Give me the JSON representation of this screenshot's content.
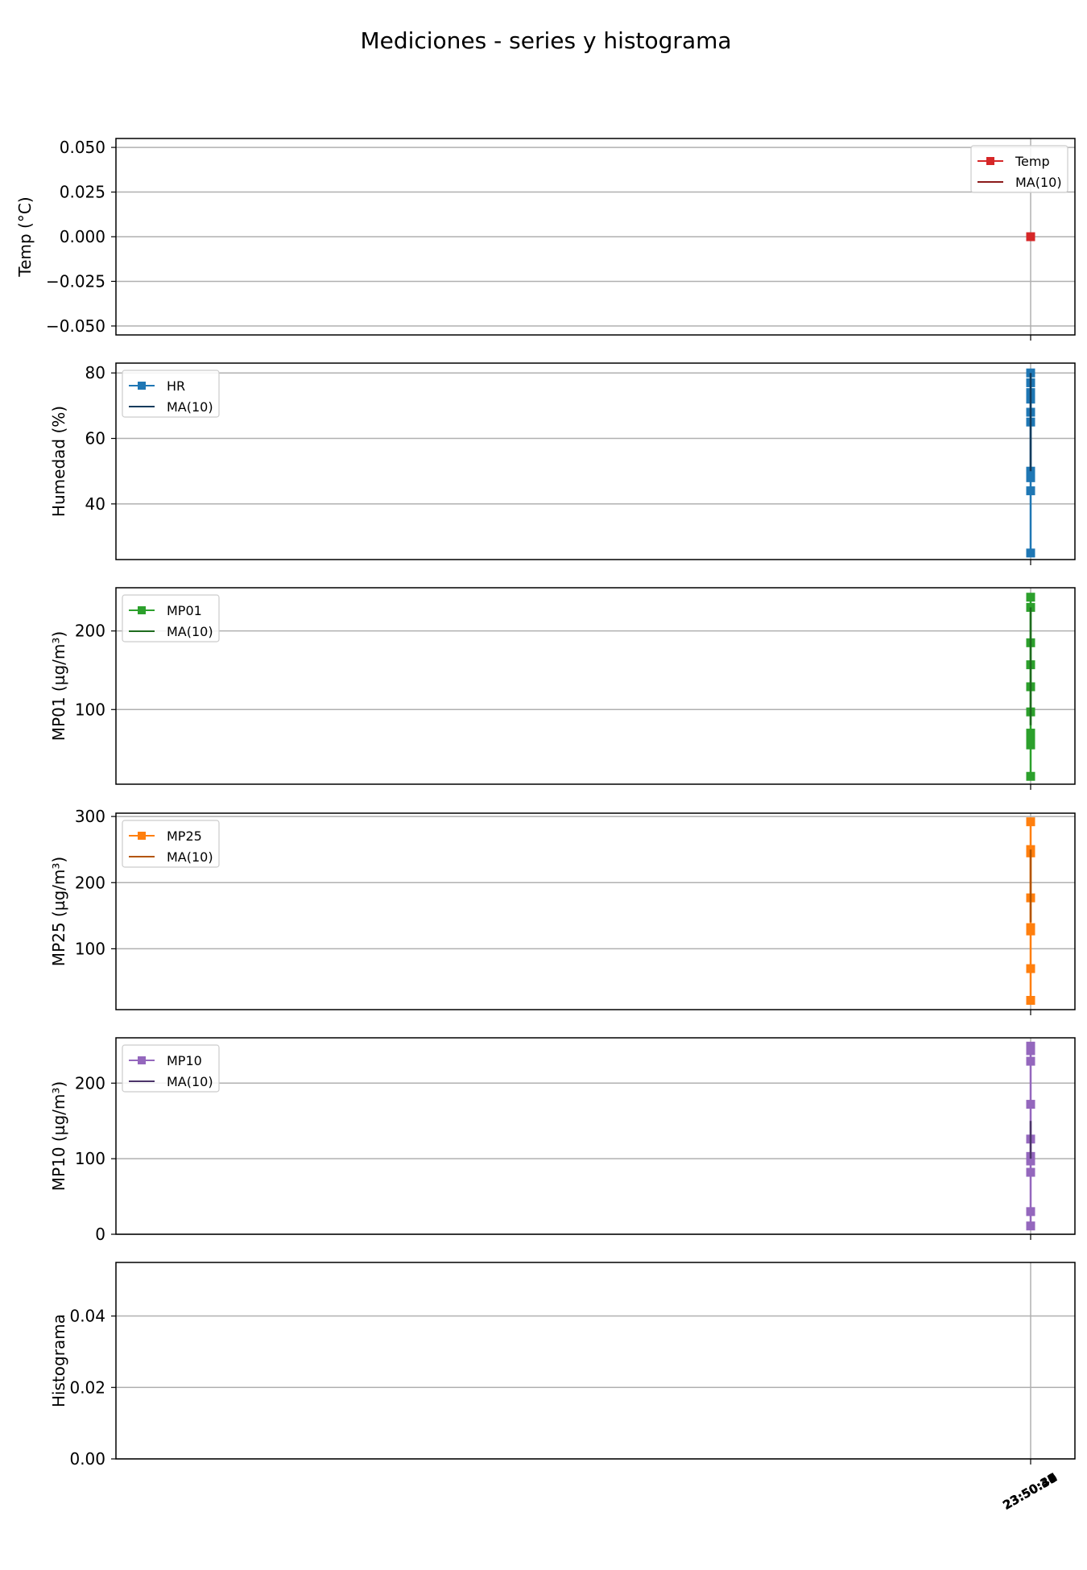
{
  "chart_data": {
    "title": "Mediciones - series y histograma",
    "x_tick_labels": [
      "23:50:32",
      "23:50:33",
      "23:50:34",
      "23:50:35",
      "23:50:36",
      "23:50:37",
      "23:50:38",
      "23:50:39",
      "23:50:40",
      "23:50:41"
    ],
    "panels": [
      {
        "type": "line",
        "ylabel": "Temp (°C)",
        "ylim": [
          -0.055,
          0.055
        ],
        "yticks": [
          0.05,
          0.025,
          0.0,
          -0.025,
          -0.05
        ],
        "ytick_labels": [
          "0.050",
          "0.025",
          "0.000",
          "−0.025",
          "−0.050"
        ],
        "grid": true,
        "legend_loc": "upper right",
        "series": [
          {
            "name": "Temp",
            "color": "#d62728",
            "values": [
              0
            ]
          },
          {
            "name": "MA(10)",
            "color": "#8b1a1a",
            "values": [
              0
            ]
          }
        ]
      },
      {
        "type": "line",
        "ylabel": "Humedad (%)",
        "ylim": [
          23,
          83
        ],
        "yticks": [
          80,
          60,
          40
        ],
        "ytick_labels": [
          "80",
          "60",
          "40"
        ],
        "grid": true,
        "legend_loc": "upper left",
        "series": [
          {
            "name": "HR",
            "color": "#1f77b4",
            "values": [
              80,
              77,
              74,
              72,
              68,
              65,
              50,
              48,
              44,
              25
            ]
          },
          {
            "name": "MA(10)",
            "color": "#123b5c",
            "values": [
              80,
              78,
              75,
              70,
              65,
              58,
              52,
              50
            ]
          }
        ]
      },
      {
        "type": "line",
        "ylabel": "MP01 (µg/m³)",
        "ylim": [
          5,
          255
        ],
        "yticks": [
          200,
          100
        ],
        "ytick_labels": [
          "200",
          "100"
        ],
        "grid": true,
        "legend_loc": "upper left",
        "series": [
          {
            "name": "MP01",
            "color": "#2ca02c",
            "values": [
              243,
              230,
              185,
              157,
              129,
              97,
              70,
              63,
              55,
              15
            ]
          },
          {
            "name": "MA(10)",
            "color": "#1e6b1e",
            "values": [
              230,
              200,
              170,
              140,
              125,
              110,
              95,
              80
            ]
          }
        ]
      },
      {
        "type": "line",
        "ylabel": "MP25 (µg/m³)",
        "ylim": [
          8,
          305
        ],
        "yticks": [
          300,
          200,
          100
        ],
        "ytick_labels": [
          "300",
          "200",
          "100"
        ],
        "grid": true,
        "legend_loc": "upper left",
        "series": [
          {
            "name": "MP25",
            "color": "#ff7f0e",
            "values": [
              292,
              250,
              245,
              177,
              132,
              127,
              70,
              22
            ]
          },
          {
            "name": "MA(10)",
            "color": "#b35400",
            "values": [
              250,
              220,
              200,
              170,
              150,
              140
            ]
          }
        ]
      },
      {
        "type": "line",
        "ylabel": "MP10 (µg/m³)",
        "ylim": [
          0,
          260
        ],
        "yticks": [
          200,
          100,
          0
        ],
        "ytick_labels": [
          "200",
          "100",
          "0"
        ],
        "grid": true,
        "legend_loc": "upper left",
        "series": [
          {
            "name": "MP10",
            "color": "#9467bd",
            "values": [
              249,
              243,
              229,
              172,
              126,
              103,
              97,
              82,
              30,
              11
            ]
          },
          {
            "name": "MA(10)",
            "color": "#4b3469",
            "values": [
              150,
              135,
              120,
              110,
              100
            ]
          }
        ]
      },
      {
        "type": "bar",
        "ylabel": "Histograma",
        "ylim": [
          0,
          0.055
        ],
        "yticks": [
          0.04,
          0.02,
          0.0
        ],
        "ytick_labels": [
          "0.04",
          "0.02",
          "0.00"
        ],
        "grid": true,
        "series": []
      }
    ]
  }
}
